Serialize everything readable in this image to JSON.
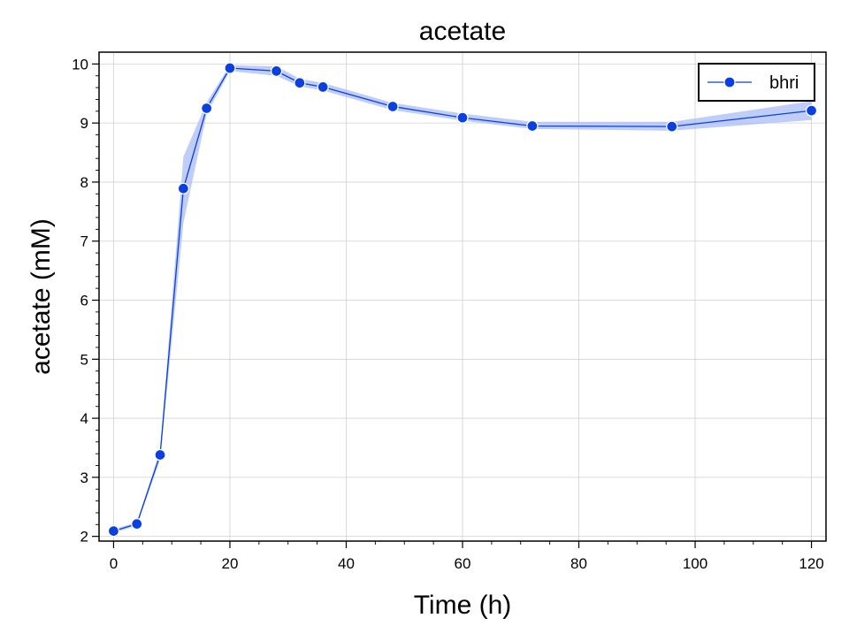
{
  "chart_data": {
    "type": "line",
    "title": "acetate",
    "xlabel": "Time (h)",
    "ylabel": "acetate (mM)",
    "xlim": [
      -2.5,
      122.5
    ],
    "ylim": [
      1.92,
      10.2
    ],
    "x_ticks": [
      0,
      20,
      40,
      60,
      80,
      100,
      120
    ],
    "y_ticks": [
      2,
      3,
      4,
      5,
      6,
      7,
      8,
      9,
      10
    ],
    "grid": true,
    "legend_position": "top-right",
    "colors": {
      "line": "#0a3fe0",
      "marker": "#0a3fe0",
      "band": "#a9bcf5",
      "grid": "#d0d0d0"
    },
    "series": [
      {
        "name": "bhri",
        "x": [
          0,
          4,
          8,
          12,
          16,
          20,
          28,
          32,
          36,
          48,
          60,
          72,
          96,
          120
        ],
        "y": [
          2.09,
          2.21,
          3.38,
          7.89,
          9.25,
          9.93,
          9.88,
          9.68,
          9.61,
          9.28,
          9.09,
          8.95,
          8.94,
          9.21
        ],
        "y_low": [
          2.06,
          2.18,
          3.3,
          7.3,
          9.15,
          9.88,
          9.8,
          9.62,
          9.55,
          9.22,
          9.04,
          8.9,
          8.87,
          9.05
        ],
        "y_high": [
          2.12,
          2.24,
          3.46,
          8.43,
          9.35,
          9.98,
          9.96,
          9.75,
          9.68,
          9.34,
          9.16,
          9.02,
          9.02,
          9.37
        ]
      }
    ]
  }
}
